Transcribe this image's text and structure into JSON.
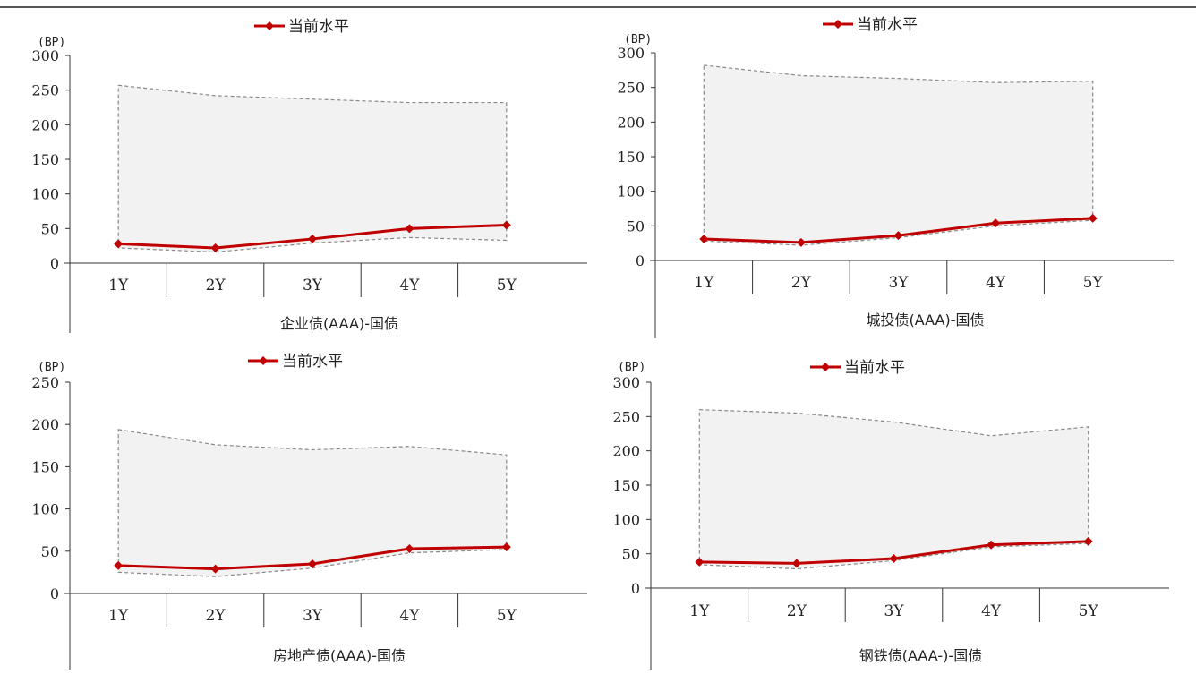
{
  "chart_data": [
    {
      "type": "area",
      "xlabel": "企业债(AAA)-国债",
      "unit": "(BP)",
      "categories": [
        "1Y",
        "2Y",
        "3Y",
        "4Y",
        "5Y"
      ],
      "ylim": [
        0,
        300
      ],
      "yticks": [
        0,
        50,
        100,
        150,
        200,
        250,
        300
      ],
      "band_upper": [
        257,
        242,
        237,
        232,
        232
      ],
      "band_lower": [
        22,
        16,
        29,
        37,
        33
      ],
      "series": [
        {
          "name": "当前水平",
          "values": [
            28,
            22,
            35,
            50,
            55
          ]
        }
      ],
      "legend": "top-center",
      "colors": {
        "current": "#c00000",
        "band_fill": "#f2f2f2",
        "band_edge": "#888888"
      }
    },
    {
      "type": "area",
      "xlabel": "城投债(AAA)-国债",
      "unit": "(BP)",
      "categories": [
        "1Y",
        "2Y",
        "3Y",
        "4Y",
        "5Y"
      ],
      "ylim": [
        0,
        300
      ],
      "yticks": [
        0,
        50,
        100,
        150,
        200,
        250,
        300
      ],
      "band_upper": [
        282,
        267,
        263,
        257,
        259
      ],
      "band_lower": [
        28,
        22,
        33,
        50,
        58
      ],
      "series": [
        {
          "name": "当前水平",
          "values": [
            31,
            26,
            36,
            54,
            61
          ]
        }
      ],
      "legend": "top-center",
      "colors": {
        "current": "#c00000",
        "band_fill": "#f2f2f2",
        "band_edge": "#888888"
      }
    },
    {
      "type": "area",
      "xlabel": "房地产债(AAA)-国债",
      "unit": "(BP)",
      "categories": [
        "1Y",
        "2Y",
        "3Y",
        "4Y",
        "5Y"
      ],
      "ylim": [
        0,
        250
      ],
      "yticks": [
        0,
        50,
        100,
        150,
        200,
        250
      ],
      "band_upper": [
        194,
        176,
        170,
        174,
        164
      ],
      "band_lower": [
        25,
        20,
        30,
        48,
        52
      ],
      "series": [
        {
          "name": "当前水平",
          "values": [
            33,
            29,
            35,
            53,
            55
          ]
        }
      ],
      "legend": "top-center",
      "colors": {
        "current": "#c00000",
        "band_fill": "#f2f2f2",
        "band_edge": "#888888"
      }
    },
    {
      "type": "area",
      "xlabel": "钢铁债(AAA-)-国债",
      "unit": "(BP)",
      "categories": [
        "1Y",
        "2Y",
        "3Y",
        "4Y",
        "5Y"
      ],
      "ylim": [
        0,
        300
      ],
      "yticks": [
        0,
        50,
        100,
        150,
        200,
        250,
        300
      ],
      "band_upper": [
        260,
        255,
        242,
        222,
        235
      ],
      "band_lower": [
        34,
        28,
        40,
        60,
        65
      ],
      "series": [
        {
          "name": "当前水平",
          "values": [
            38,
            36,
            43,
            63,
            68
          ]
        }
      ],
      "legend": "top-center",
      "colors": {
        "current": "#c00000",
        "band_fill": "#f2f2f2",
        "band_edge": "#888888"
      }
    }
  ]
}
